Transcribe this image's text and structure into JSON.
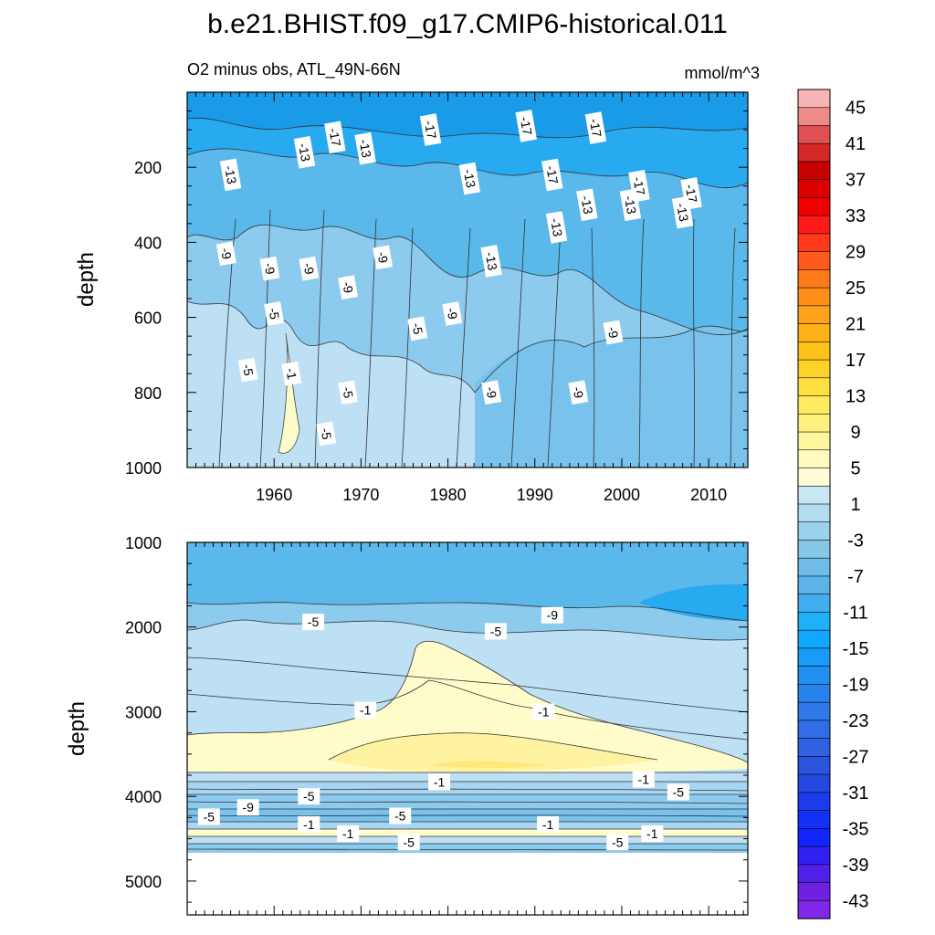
{
  "title": "b.e21.BHIST.f09_g17.CMIP6-historical.011",
  "subtitle_left": "O2 minus obs, ATL_49N-66N",
  "subtitle_right": "mmol/m^3",
  "chart_data": [
    {
      "type": "heatmap",
      "name": "upper-panel",
      "ylabel": "depth",
      "xlabel": "",
      "xlim": [
        1950,
        2014.5
      ],
      "ylim": [
        0,
        1000
      ],
      "y_reversed": true,
      "xticks": [
        1960,
        1970,
        1980,
        1990,
        2000,
        2010
      ],
      "xtick_labels": [
        "1960",
        "1970",
        "1980",
        "1990",
        "2000",
        "2010"
      ],
      "yticks": [
        200,
        400,
        600,
        800,
        1000
      ],
      "ytick_labels": [
        "200",
        "400",
        "600",
        "800",
        "1000"
      ],
      "contour_labels": [
        {
          "text": "-17",
          "x": 1967,
          "y": 120
        },
        {
          "text": "-17",
          "x": 1978,
          "y": 100
        },
        {
          "text": "-17",
          "x": 1989,
          "y": 90
        },
        {
          "text": "-17",
          "x": 1997,
          "y": 95
        },
        {
          "text": "-17",
          "x": 2002,
          "y": 250
        },
        {
          "text": "-17",
          "x": 2008,
          "y": 270
        },
        {
          "text": "-17",
          "x": 1992,
          "y": 220
        },
        {
          "text": "-13",
          "x": 1955,
          "y": 220
        },
        {
          "text": "-13",
          "x": 1963.5,
          "y": 160
        },
        {
          "text": "-13",
          "x": 1970.5,
          "y": 150
        },
        {
          "text": "-13",
          "x": 1982.5,
          "y": 230
        },
        {
          "text": "-13",
          "x": 1985,
          "y": 450
        },
        {
          "text": "-13",
          "x": 1996,
          "y": 300
        },
        {
          "text": "-13",
          "x": 2001,
          "y": 300
        },
        {
          "text": "-13",
          "x": 2007,
          "y": 320
        },
        {
          "text": "-13",
          "x": 1992.5,
          "y": 360
        },
        {
          "text": "-9",
          "x": 1954.5,
          "y": 430
        },
        {
          "text": "-9",
          "x": 1959.5,
          "y": 470
        },
        {
          "text": "-9",
          "x": 1964,
          "y": 470
        },
        {
          "text": "-9",
          "x": 1972.5,
          "y": 440
        },
        {
          "text": "-9",
          "x": 1968.5,
          "y": 520
        },
        {
          "text": "-9",
          "x": 1980.5,
          "y": 590
        },
        {
          "text": "-9",
          "x": 1999,
          "y": 640
        },
        {
          "text": "-9",
          "x": 1985,
          "y": 800
        },
        {
          "text": "-9",
          "x": 1995,
          "y": 800
        },
        {
          "text": "-5",
          "x": 1960,
          "y": 590
        },
        {
          "text": "-5",
          "x": 1976.5,
          "y": 630
        },
        {
          "text": "-5",
          "x": 1957,
          "y": 740
        },
        {
          "text": "-5",
          "x": 1968.5,
          "y": 800
        },
        {
          "text": "-5",
          "x": 1966,
          "y": 910
        },
        {
          "text": "-1",
          "x": 1962,
          "y": 750
        }
      ]
    },
    {
      "type": "heatmap",
      "name": "lower-panel",
      "ylabel": "depth",
      "xlabel": "",
      "xlim": [
        1950,
        2014.5
      ],
      "ylim": [
        1000,
        5400
      ],
      "y_reversed": true,
      "yticks": [
        1000,
        2000,
        3000,
        4000,
        5000
      ],
      "ytick_labels": [
        "1000",
        "2000",
        "3000",
        "4000",
        "5000"
      ],
      "data_bottom_depth": 4620,
      "contour_labels": [
        {
          "text": "-9",
          "x": 1992,
          "y": 1860
        },
        {
          "text": "-5",
          "x": 1964.5,
          "y": 1940
        },
        {
          "text": "-5",
          "x": 1985.5,
          "y": 2050
        },
        {
          "text": "-1",
          "x": 1970.5,
          "y": 2980
        },
        {
          "text": "-1",
          "x": 1991,
          "y": 3000
        },
        {
          "text": "-1",
          "x": 1979,
          "y": 3830
        },
        {
          "text": "-1",
          "x": 2002.5,
          "y": 3800
        },
        {
          "text": "-5",
          "x": 2006.5,
          "y": 3950
        },
        {
          "text": "-5",
          "x": 1964,
          "y": 4000
        },
        {
          "text": "-9",
          "x": 1957,
          "y": 4130
        },
        {
          "text": "-5",
          "x": 1952.5,
          "y": 4240
        },
        {
          "text": "-5",
          "x": 1974.5,
          "y": 4230
        },
        {
          "text": "-1",
          "x": 1964,
          "y": 4330
        },
        {
          "text": "-1",
          "x": 1991.5,
          "y": 4330
        },
        {
          "text": "-1",
          "x": 1968.5,
          "y": 4440
        },
        {
          "text": "-1",
          "x": 2003.5,
          "y": 4440
        },
        {
          "text": "-5",
          "x": 1975.5,
          "y": 4540
        },
        {
          "text": "-5",
          "x": 1999.5,
          "y": 4540
        }
      ]
    }
  ],
  "colorbar": {
    "labels": [
      "45",
      "41",
      "37",
      "33",
      "29",
      "25",
      "21",
      "17",
      "13",
      "9",
      "5",
      "1",
      "-3",
      "-7",
      "-11",
      "-15",
      "-19",
      "-23",
      "-27",
      "-31",
      "-35",
      "-39",
      "-43"
    ],
    "colors": [
      "#f8b5b5",
      "#ee8a8a",
      "#e05050",
      "#d42828",
      "#c80000",
      "#dc0000",
      "#f00000",
      "#ff1a1a",
      "#ff3a1a",
      "#ff5a1a",
      "#ff7a1a",
      "#ff8e1a",
      "#ffa21a",
      "#ffb21a",
      "#ffc21a",
      "#ffd22a",
      "#ffe040",
      "#ffeb60",
      "#fff080",
      "#fff6a0",
      "#fffac0",
      "#fffdd8",
      "#c8e6f4",
      "#b2dcf0",
      "#9cd2ec",
      "#86c8e8",
      "#70bee8",
      "#5ab4e8",
      "#40aef0",
      "#20b0f8",
      "#10a8fc",
      "#189cf8",
      "#2090f0",
      "#2884ec",
      "#3078e8",
      "#306ce4",
      "#3060e0",
      "#2a54dc",
      "#2448e0",
      "#1c3cec",
      "#1430f4",
      "#1024fc",
      "#3020f0",
      "#5020e8",
      "#7020e0",
      "#8028e8"
    ]
  },
  "palette": {
    "deep_blue": "#1496e6",
    "mid_blue": "#28aaf0",
    "light_blue": "#5ab8ea",
    "pale_blue": "#8ccaee",
    "very_pale_blue": "#bde0f4",
    "pale_yellow": "#fffccc",
    "yellow": "#fff2a0"
  }
}
